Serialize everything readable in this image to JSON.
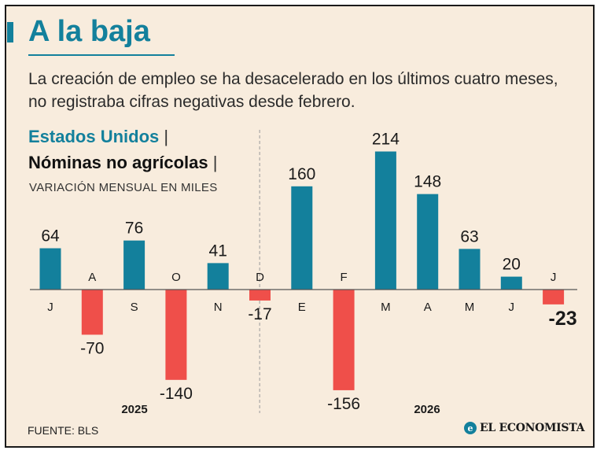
{
  "header": {
    "title": "A la baja",
    "subtitle": "La creación de empleo se ha desacelerado en los últimos cuatro meses, no registraba cifras negativas desde febrero."
  },
  "legend": {
    "country": "Estados Unidos",
    "series": "Nóminas no agrícolas",
    "separator": "|",
    "units": "VARIACIÓN MENSUAL EN MILES"
  },
  "footer": {
    "source": "FUENTE: BLS",
    "brand": "EL ECONOMISTA",
    "brand_mark": "e"
  },
  "colors": {
    "positive": "#13809c",
    "negative": "#ef4f4a",
    "background": "#f8ecdd",
    "accent": "#13809c"
  },
  "chart_data": {
    "type": "bar",
    "categories": [
      "J",
      "A",
      "S",
      "O",
      "N",
      "D",
      "E",
      "F",
      "M",
      "A",
      "M",
      "J",
      "J"
    ],
    "values": [
      64,
      -70,
      76,
      -140,
      41,
      -17,
      160,
      -156,
      214,
      148,
      63,
      20,
      -23
    ],
    "value_labels": [
      "64",
      "-70",
      "76",
      "-140",
      "41",
      "-17",
      "160",
      "-156",
      "214",
      "148",
      "63",
      "20",
      "-23"
    ],
    "year_groups": [
      {
        "label": "2025",
        "start": 0,
        "end": 5
      },
      {
        "label": "2026",
        "start": 6,
        "end": 12
      }
    ],
    "highlight_index": 12
  }
}
